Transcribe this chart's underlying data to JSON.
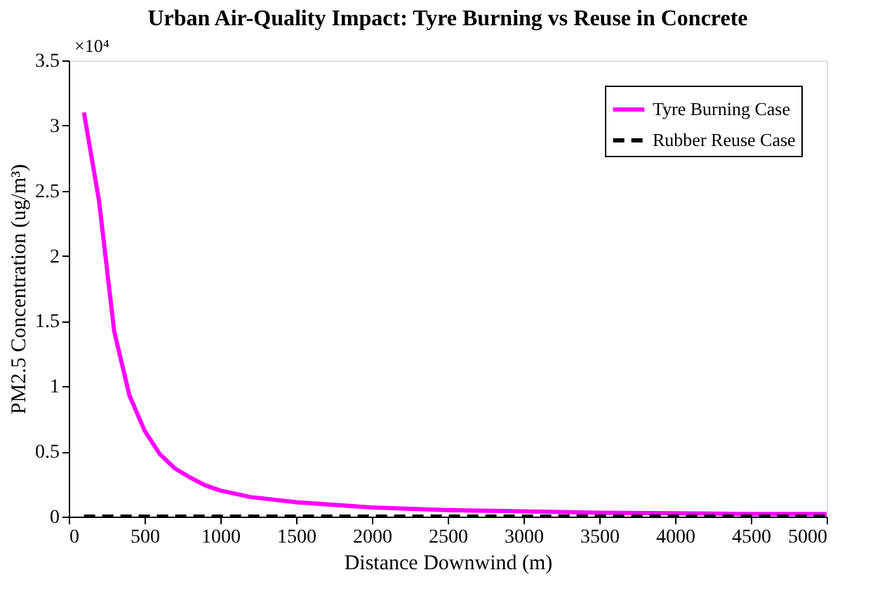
{
  "chart_data": {
    "type": "line",
    "title": "Urban Air-Quality Impact: Tyre Burning vs Reuse in Concrete",
    "xlabel": "Distance Downwind (m)",
    "ylabel": "PM2.5  Concentration  (ug/m³)",
    "annotations": [
      "×10⁴"
    ],
    "x": [
      100,
      200,
      300,
      400,
      500,
      600,
      700,
      800,
      900,
      1000,
      1200,
      1500,
      2000,
      2500,
      3000,
      3500,
      4000,
      4500,
      5000
    ],
    "series": [
      {
        "name": "Tyre Burning Case",
        "color": "#ff00ff",
        "line_style": "solid",
        "values": [
          3.1,
          2.42,
          1.42,
          0.93,
          0.66,
          0.48,
          0.37,
          0.3,
          0.24,
          0.2,
          0.15,
          0.11,
          0.07,
          0.05,
          0.04,
          0.03,
          0.025,
          0.02,
          0.02
        ]
      },
      {
        "name": "Rubber Reuse Case",
        "color": "#000000",
        "line_style": "dashed",
        "values": [
          0,
          0,
          0,
          0,
          0,
          0,
          0,
          0,
          0,
          0,
          0,
          0,
          0,
          0,
          0,
          0,
          0,
          0,
          0
        ]
      }
    ],
    "xlim": [
      0,
      5000
    ],
    "xticks": [
      0,
      500,
      1000,
      1500,
      2000,
      2500,
      3000,
      3500,
      4000,
      4500,
      5000
    ],
    "ylim": [
      0,
      3.5
    ],
    "yticks": [
      0,
      0.5,
      1,
      1.5,
      2,
      2.5,
      3,
      3.5
    ],
    "grid": false,
    "legend": "top right"
  }
}
